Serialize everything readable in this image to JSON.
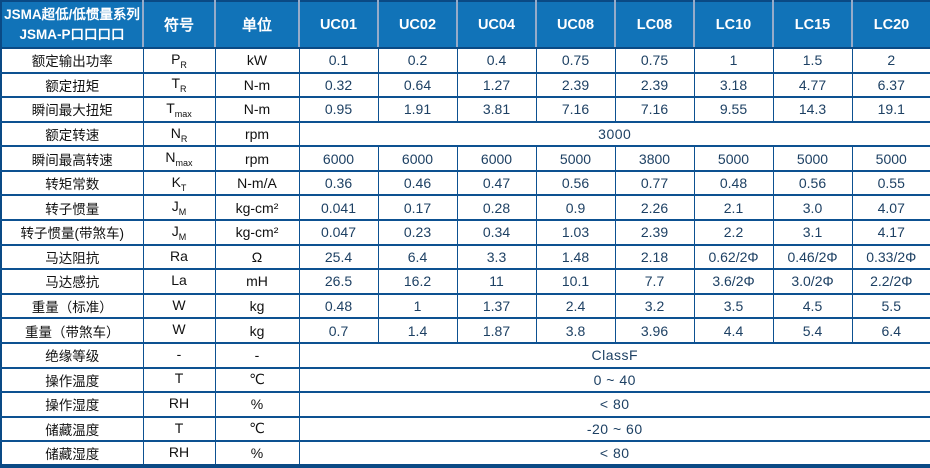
{
  "table": {
    "header": {
      "series_line1": "JSMA超低/低惯量系列",
      "series_line2": "JSMA-P口口口口",
      "symbol_label": "符号",
      "unit_label": "单位",
      "models": [
        "UC01",
        "UC02",
        "UC04",
        "UC08",
        "LC08",
        "LC10",
        "LC15",
        "LC20"
      ]
    },
    "rows": [
      {
        "label": "额定输出功率",
        "symbol": "P",
        "subscript": "R",
        "unit": "kW",
        "values": [
          "0.1",
          "0.2",
          "0.4",
          "0.75",
          "0.75",
          "1",
          "1.5",
          "2"
        ]
      },
      {
        "label": "额定扭矩",
        "symbol": "T",
        "subscript": "R",
        "unit": "N-m",
        "values": [
          "0.32",
          "0.64",
          "1.27",
          "2.39",
          "2.39",
          "3.18",
          "4.77",
          "6.37"
        ]
      },
      {
        "label": "瞬间最大扭矩",
        "symbol": "T",
        "subscript": "max",
        "unit": "N-m",
        "values": [
          "0.95",
          "1.91",
          "3.81",
          "7.16",
          "7.16",
          "9.55",
          "14.3",
          "19.1"
        ]
      },
      {
        "label": "额定转速",
        "symbol": "N",
        "subscript": "R",
        "unit": "rpm",
        "merged": "3000"
      },
      {
        "label": "瞬间最高转速",
        "symbol": "N",
        "subscript": "max",
        "unit": "rpm",
        "values": [
          "6000",
          "6000",
          "6000",
          "5000",
          "3800",
          "5000",
          "5000",
          "5000"
        ]
      },
      {
        "label": "转矩常数",
        "symbol": "K",
        "subscript": "T",
        "unit": "N-m/A",
        "values": [
          "0.36",
          "0.46",
          "0.47",
          "0.56",
          "0.77",
          "0.48",
          "0.56",
          "0.55"
        ]
      },
      {
        "label": "转子惯量",
        "symbol": "J",
        "subscript": "M",
        "unit": "kg-cm²",
        "values": [
          "0.041",
          "0.17",
          "0.28",
          "0.9",
          "2.26",
          "2.1",
          "3.0",
          "4.07"
        ]
      },
      {
        "label": "转子惯量(带煞车)",
        "symbol": "J",
        "subscript": "M",
        "unit": "kg-cm²",
        "values": [
          "0.047",
          "0.23",
          "0.34",
          "1.03",
          "2.39",
          "2.2",
          "3.1",
          "4.17"
        ]
      },
      {
        "label": "马达阻抗",
        "symbol": "Ra",
        "subscript": "",
        "unit": "Ω",
        "values": [
          "25.4",
          "6.4",
          "3.3",
          "1.48",
          "2.18",
          "0.62/2Φ",
          "0.46/2Φ",
          "0.33/2Φ"
        ]
      },
      {
        "label": "马达感抗",
        "symbol": "La",
        "subscript": "",
        "unit": "mH",
        "values": [
          "26.5",
          "16.2",
          "11",
          "10.1",
          "7.7",
          "3.6/2Φ",
          "3.0/2Φ",
          "2.2/2Φ"
        ]
      },
      {
        "label": "重量（标准）",
        "symbol": "W",
        "subscript": "",
        "unit": "kg",
        "values": [
          "0.48",
          "1",
          "1.37",
          "2.4",
          "3.2",
          "3.5",
          "4.5",
          "5.5"
        ]
      },
      {
        "label": "重量（带煞车）",
        "symbol": "W",
        "subscript": "",
        "unit": "kg",
        "values": [
          "0.7",
          "1.4",
          "1.87",
          "3.8",
          "3.96",
          "4.4",
          "5.4",
          "6.4"
        ]
      },
      {
        "label": "绝缘等级",
        "symbol": "-",
        "subscript": "",
        "unit": "-",
        "merged": "ClassF"
      },
      {
        "label": "操作温度",
        "symbol": "T",
        "subscript": "",
        "unit": "℃",
        "merged": "0 ~ 40"
      },
      {
        "label": "操作湿度",
        "symbol": "RH",
        "subscript": "",
        "unit": "%",
        "merged": "< 80"
      },
      {
        "label": "储藏温度",
        "symbol": "T",
        "subscript": "",
        "unit": "℃",
        "merged": "-20 ~ 60"
      },
      {
        "label": "储藏湿度",
        "symbol": "RH",
        "subscript": "",
        "unit": "%",
        "merged": "< 80"
      }
    ],
    "colors": {
      "header_bg": "#1173b8",
      "header_text": "#ffffff",
      "header_divider": "#96abc9",
      "border": "#0d5191",
      "outer_border": "#0a4a85",
      "value_text": "#1d4063",
      "label_text": "#111111"
    }
  }
}
